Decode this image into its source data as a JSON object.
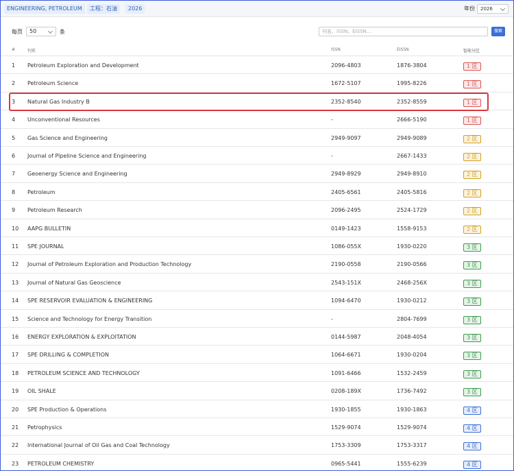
{
  "header": {
    "category": "ENGINEERING, PETROLEUM",
    "category_cn": "工程：石油",
    "year": "2026",
    "year_label": "年份",
    "year_select": "2026"
  },
  "controls": {
    "per_page_label": "每页",
    "per_page": "50",
    "per_page_unit": "条",
    "search_placeholder": "刊名、ISSN、EISSN...",
    "search_button": "搜索"
  },
  "zone_colors": {
    "1 区": "#d9534f",
    "2 区": "#d4a017",
    "3 区": "#3c9a4c",
    "4 区": "#3a6fd8"
  },
  "table": {
    "columns": [
      "#",
      "刊名",
      "ISSN",
      "EISSN",
      "智能分区"
    ],
    "rows": [
      [
        "1",
        "Petroleum Exploration and Development",
        "2096-4803",
        "1876-3804",
        "1 区"
      ],
      [
        "2",
        "Petroleum Science",
        "1672-5107",
        "1995-8226",
        "1 区"
      ],
      [
        "3",
        "Natural Gas Industry B",
        "2352-8540",
        "2352-8559",
        "1 区"
      ],
      [
        "4",
        "Unconventional Resources",
        "-",
        "2666-5190",
        "1 区"
      ],
      [
        "5",
        "Gas Science and Engineering",
        "2949-9097",
        "2949-9089",
        "2 区"
      ],
      [
        "6",
        "Journal of Pipeline Science and Engineering",
        "-",
        "2667-1433",
        "2 区"
      ],
      [
        "7",
        "Geoenergy Science and Engineering",
        "2949-8929",
        "2949-8910",
        "2 区"
      ],
      [
        "8",
        "Petroleum",
        "2405-6561",
        "2405-5816",
        "2 区"
      ],
      [
        "9",
        "Petroleum Research",
        "2096-2495",
        "2524-1729",
        "2 区"
      ],
      [
        "10",
        "AAPG BULLETIN",
        "0149-1423",
        "1558-9153",
        "2 区"
      ],
      [
        "11",
        "SPE JOURNAL",
        "1086-055X",
        "1930-0220",
        "3 区"
      ],
      [
        "12",
        "Journal of Petroleum Exploration and Production Technology",
        "2190-0558",
        "2190-0566",
        "3 区"
      ],
      [
        "13",
        "Journal of Natural Gas Geoscience",
        "2543-151X",
        "2468-256X",
        "3 区"
      ],
      [
        "14",
        "SPE RESERVOIR EVALUATION & ENGINEERING",
        "1094-6470",
        "1930-0212",
        "3 区"
      ],
      [
        "15",
        "Science and Technology for Energy Transition",
        "-",
        "2804-7699",
        "3 区"
      ],
      [
        "16",
        "ENERGY EXPLORATION & EXPLOITATION",
        "0144-5987",
        "2048-4054",
        "3 区"
      ],
      [
        "17",
        "SPE DRILLING & COMPLETION",
        "1064-6671",
        "1930-0204",
        "3 区"
      ],
      [
        "18",
        "PETROLEUM SCIENCE AND TECHNOLOGY",
        "1091-6466",
        "1532-2459",
        "3 区"
      ],
      [
        "19",
        "OIL SHALE",
        "0208-189X",
        "1736-7492",
        "3 区"
      ],
      [
        "20",
        "SPE Production & Operations",
        "1930-1855",
        "1930-1863",
        "4 区"
      ],
      [
        "21",
        "Petrophysics",
        "1529-9074",
        "1529-9074",
        "4 区"
      ],
      [
        "22",
        "International Journal of Oil Gas and Coal Technology",
        "1753-3309",
        "1753-3317",
        "4 区"
      ],
      [
        "23",
        "PETROLEUM CHEMISTRY",
        "0965-5441",
        "1555-6239",
        "4 区"
      ]
    ]
  }
}
